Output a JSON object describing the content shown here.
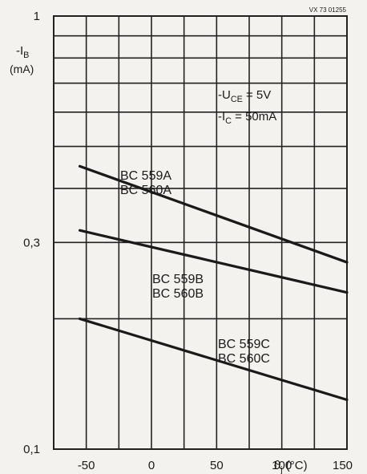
{
  "chart_data": {
    "type": "line",
    "title": "",
    "drawing_code": "VX 73 01255",
    "ylabel": "-I",
    "ylabel_sub": "B",
    "yunit": "(mA)",
    "xlabel_prefix": "ϑ",
    "xlabel_sub": "j",
    "xlabel_unit": "(°C)",
    "x_ticks": [
      {
        "value": -50,
        "label": "-50"
      },
      {
        "value": 0,
        "label": "0"
      },
      {
        "value": 50,
        "label": "50"
      },
      {
        "value": 100,
        "label": "100"
      },
      {
        "value": 150,
        "label": "150"
      }
    ],
    "y_ticks": [
      {
        "value": 0.1,
        "label": "0,1"
      },
      {
        "value": 0.3,
        "label": "0,3"
      },
      {
        "value": 1,
        "label": "1"
      }
    ],
    "xlim": [
      -75,
      150
    ],
    "ylim": [
      0.1,
      1
    ],
    "yscale": "log",
    "grid": true,
    "conditions": [
      {
        "symbol": "-U",
        "sub": "CE",
        "value": "= 5V"
      },
      {
        "symbol": "-I",
        "sub": "C",
        "value": "= 50mA"
      }
    ],
    "series": [
      {
        "name": "BC559A BC560A",
        "label_lines": [
          "BC 559A",
          "BC 560A"
        ],
        "x": [
          -55,
          150
        ],
        "y": [
          0.45,
          0.27
        ]
      },
      {
        "name": "BC559B BC560B",
        "label_lines": [
          "BC 559B",
          "BC 560B"
        ],
        "x": [
          -55,
          150
        ],
        "y": [
          0.32,
          0.23
        ]
      },
      {
        "name": "BC559C BC560C",
        "label_lines": [
          "BC 559C",
          "BC 560C"
        ],
        "x": [
          -55,
          150
        ],
        "y": [
          0.2,
          0.13
        ]
      }
    ],
    "color": "#1a1a1a"
  }
}
